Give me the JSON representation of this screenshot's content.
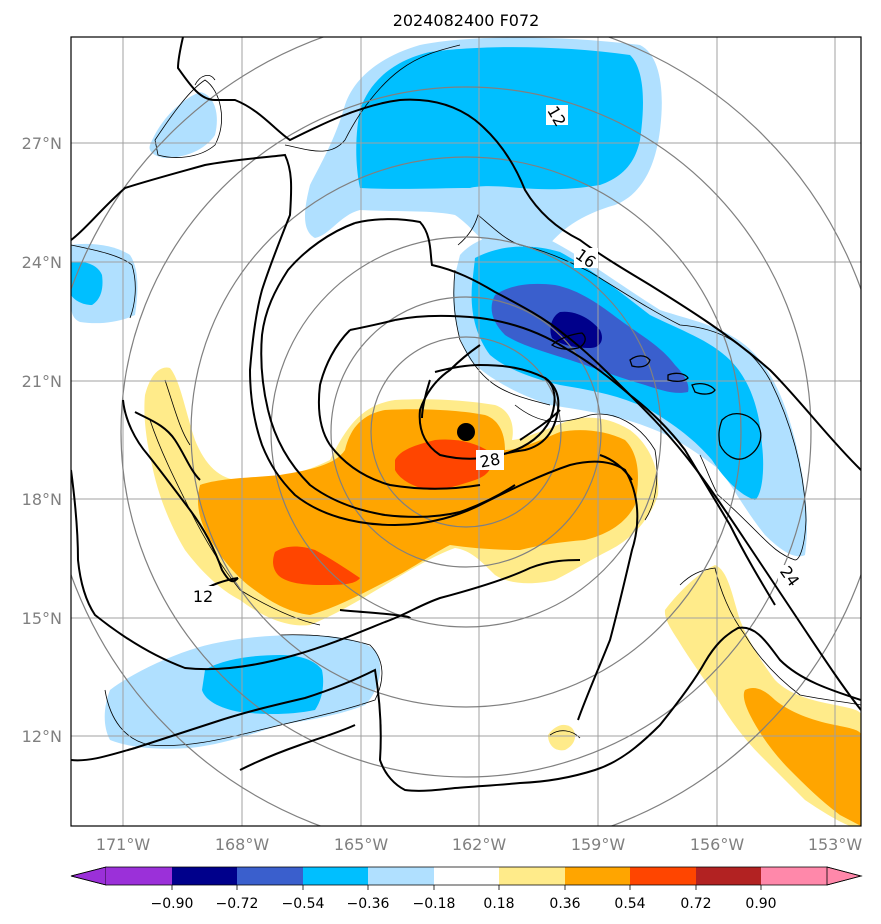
{
  "title": "2024082400 F072",
  "lon_ticks": [
    "171°W",
    "168°W",
    "165°W",
    "162°W",
    "159°W",
    "156°W",
    "153°W"
  ],
  "lat_ticks": [
    "27°N",
    "24°N",
    "21°N",
    "18°N",
    "15°N",
    "12°N"
  ],
  "colorbar": {
    "labels": [
      "−0.90",
      "−0.72",
      "−0.54",
      "−0.36",
      "−0.18",
      "0.18",
      "0.36",
      "0.54",
      "0.72",
      "0.90"
    ],
    "colors": [
      "#9b30d9",
      "#00008b",
      "#3a5fcd",
      "#00bfff",
      "#b0e0ff",
      "#ffffff",
      "#ffeb8a",
      "#ffa500",
      "#ff4500",
      "#b22222",
      "#ff88aa"
    ]
  },
  "contour_labels": [
    "12",
    "16",
    "24",
    "28",
    "12"
  ],
  "fill_colors": {
    "light_blue": "#b0e0ff",
    "medium_blue": "#00bfff",
    "royal_blue": "#3a5fcd",
    "dark_blue": "#00008b",
    "light_yellow": "#ffeb8a",
    "orange": "#ffa500",
    "red_orange": "#ff4500"
  },
  "storm_center": {
    "lon": -162.35,
    "lat": 19.7
  }
}
